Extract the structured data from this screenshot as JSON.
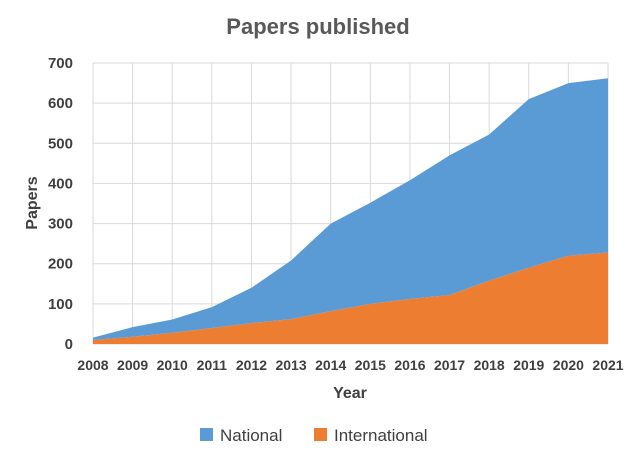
{
  "chart_data": {
    "type": "area",
    "stacked": true,
    "title": "Papers published",
    "xlabel": "Year",
    "ylabel": "Papers",
    "x": [
      "2008",
      "2009",
      "2010",
      "2011",
      "2012",
      "2013",
      "2014",
      "2015",
      "2016",
      "2017",
      "2018",
      "2019",
      "2020",
      "2021"
    ],
    "ylim": [
      0,
      700
    ],
    "yticks": [
      0,
      100,
      200,
      300,
      400,
      500,
      600,
      700
    ],
    "grid": true,
    "legend_position": "bottom",
    "series": [
      {
        "name": "International",
        "color": "#ed7d31",
        "values": [
          10,
          18,
          28,
          40,
          52,
          62,
          82,
          100,
          112,
          122,
          158,
          190,
          220,
          228
        ]
      },
      {
        "name": "National",
        "color": "#5b9bd5",
        "values": [
          6,
          24,
          33,
          52,
          88,
          146,
          218,
          252,
          296,
          348,
          364,
          420,
          430,
          434
        ]
      }
    ],
    "legend_order": [
      "National",
      "International"
    ]
  }
}
